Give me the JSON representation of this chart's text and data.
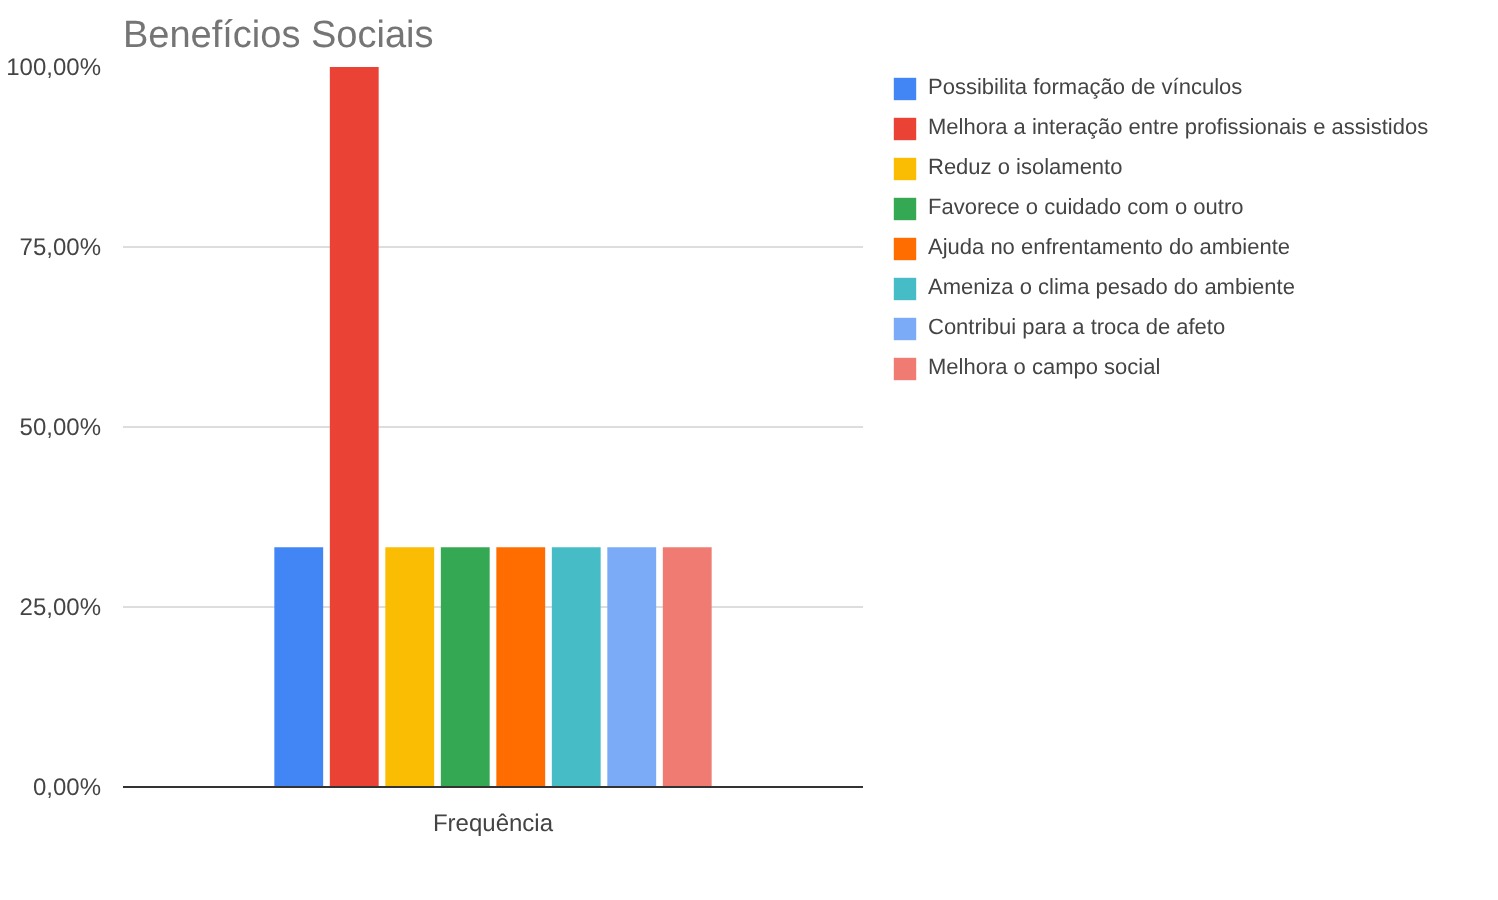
{
  "chart_data": {
    "type": "bar",
    "title": "Benefícios Sociais",
    "categories": [
      "Frequência"
    ],
    "series": [
      {
        "name": "Possibilita formação de vínculos",
        "color": "#4285f4",
        "values": [
          33.3
        ]
      },
      {
        "name": "Melhora a interação entre profissionais e assistidos",
        "color": "#ea4335",
        "values": [
          100
        ]
      },
      {
        "name": "Reduz o isolamento",
        "color": "#fbbc04",
        "values": [
          33.3
        ]
      },
      {
        "name": "Favorece o cuidado com o outro",
        "color": "#34a853",
        "values": [
          33.3
        ]
      },
      {
        "name": "Ajuda no enfrentamento do ambiente",
        "color": "#ff6d01",
        "values": [
          33.3
        ]
      },
      {
        "name": "Ameniza o clima pesado do ambiente",
        "color": "#46bdc6",
        "values": [
          33.3
        ]
      },
      {
        "name": "Contribui para a troca de afeto",
        "color": "#7baaf7",
        "values": [
          33.3
        ]
      },
      {
        "name": "Melhora o campo social",
        "color": "#f07b72",
        "values": [
          33.3
        ]
      }
    ],
    "ylim": [
      0,
      100
    ],
    "yticks": [
      {
        "value": 0,
        "label": "0,00%"
      },
      {
        "value": 25,
        "label": "25,00%"
      },
      {
        "value": 50,
        "label": "50,00%"
      },
      {
        "value": 75,
        "label": "75,00%"
      },
      {
        "value": 100,
        "label": "100,00%"
      }
    ],
    "grid": "y",
    "legend": "right"
  }
}
